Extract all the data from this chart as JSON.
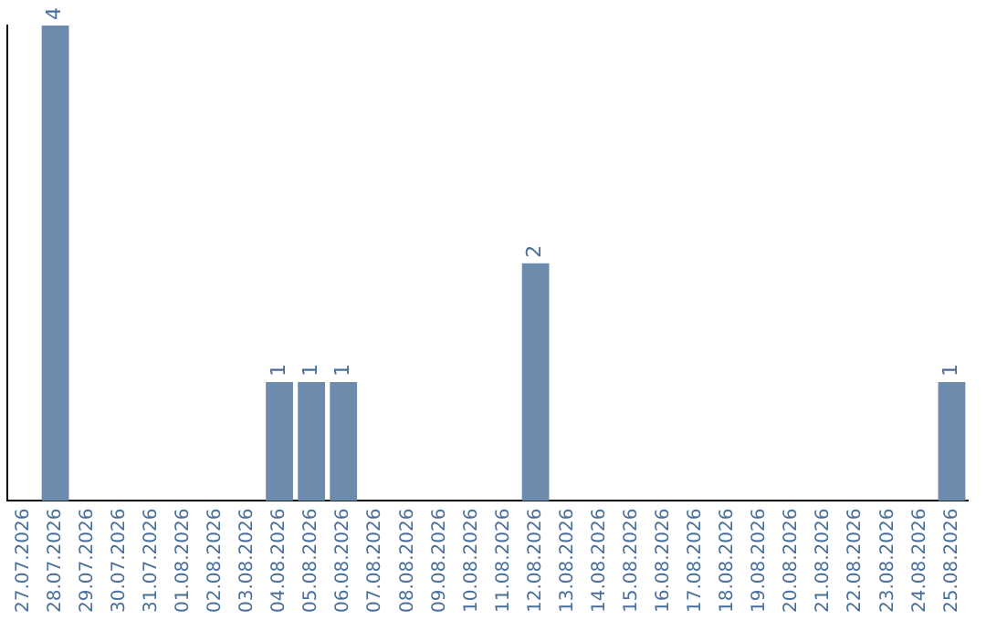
{
  "chart_data": {
    "type": "bar",
    "categories": [
      "27.07.2026",
      "28.07.2026",
      "29.07.2026",
      "30.07.2026",
      "31.07.2026",
      "01.08.2026",
      "02.08.2026",
      "03.08.2026",
      "04.08.2026",
      "05.08.2026",
      "06.08.2026",
      "07.08.2026",
      "08.08.2026",
      "09.08.2026",
      "10.08.2026",
      "11.08.2026",
      "12.08.2026",
      "13.08.2026",
      "14.08.2026",
      "15.08.2026",
      "16.08.2026",
      "17.08.2026",
      "18.08.2026",
      "19.08.2026",
      "20.08.2026",
      "21.08.2026",
      "22.08.2026",
      "23.08.2026",
      "24.08.2026",
      "25.08.2026"
    ],
    "values": [
      0,
      4,
      0,
      0,
      0,
      0,
      0,
      0,
      1,
      1,
      1,
      0,
      0,
      0,
      0,
      0,
      2,
      0,
      0,
      0,
      0,
      0,
      0,
      0,
      0,
      0,
      0,
      0,
      0,
      1
    ],
    "value_labels": [
      null,
      "4",
      null,
      null,
      null,
      null,
      null,
      null,
      "1",
      "1",
      "1",
      null,
      null,
      null,
      null,
      null,
      "2",
      null,
      null,
      null,
      null,
      null,
      null,
      null,
      null,
      null,
      null,
      null,
      null,
      "1"
    ],
    "color": "#6d8cad",
    "ylim": [
      0,
      4
    ],
    "tick_labels": "x",
    "grid": false,
    "legend": false
  }
}
